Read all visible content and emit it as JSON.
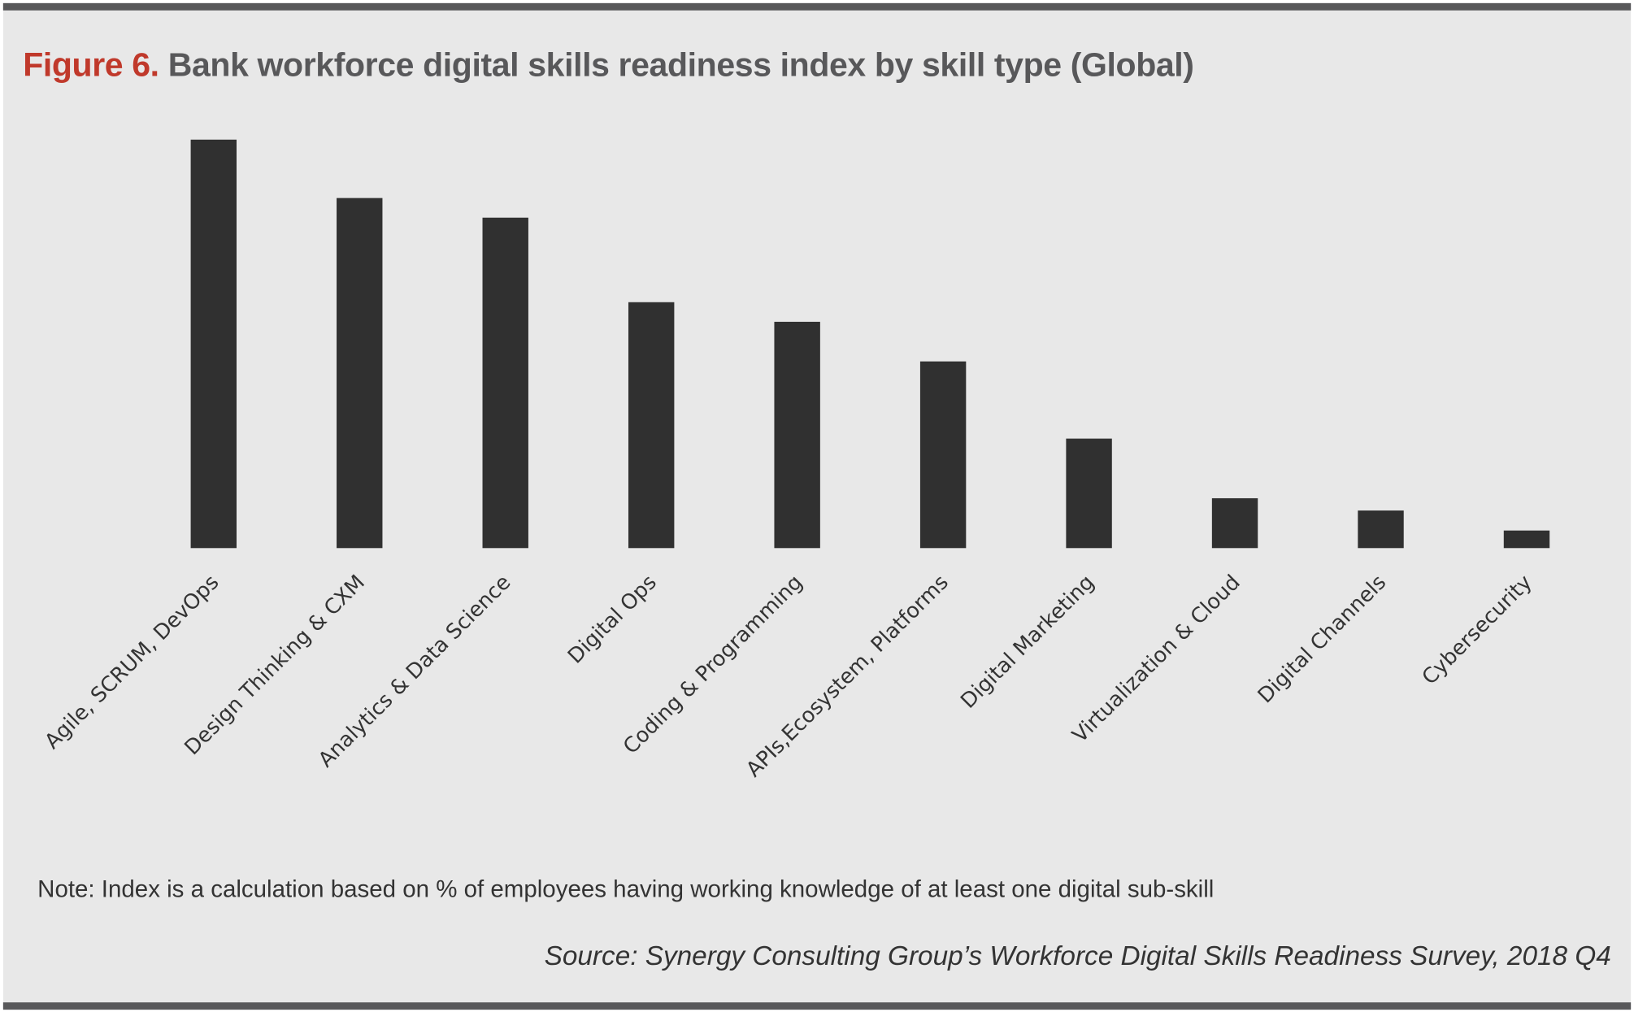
{
  "chart_data": {
    "type": "bar",
    "title_prefix": "Figure 6.",
    "title": "Bank workforce digital skills readiness index by skill type (Global)",
    "xlabel": "",
    "ylabel": "",
    "ylim": [
      0,
      100
    ],
    "grid": false,
    "categories": [
      "Agile, SCRUM, DevOps",
      "Design Thinking & CXM",
      "Analytics & Data Science",
      "Digital Ops",
      "Coding & Programming",
      "APIs,Ecosystem, Platforms",
      "Digital Marketing",
      "Virtualization & Cloud",
      "Digital Channels",
      "Cybersecurity"
    ],
    "values": [
      100,
      85.7,
      80.9,
      60.2,
      55.4,
      45.7,
      26.8,
      12.2,
      9.2,
      4.3
    ],
    "bar_color": "#303030",
    "note": "Note: Index is a calculation based on % of employees having working knowledge of at least one digital sub-skill",
    "source": "Source: Synergy Consulting Group’s Workforce Digital Skills Readiness Survey, 2018 Q4"
  },
  "colors": {
    "accent": "#c0392b",
    "title": "#58585a",
    "background": "#e8e8e8"
  }
}
